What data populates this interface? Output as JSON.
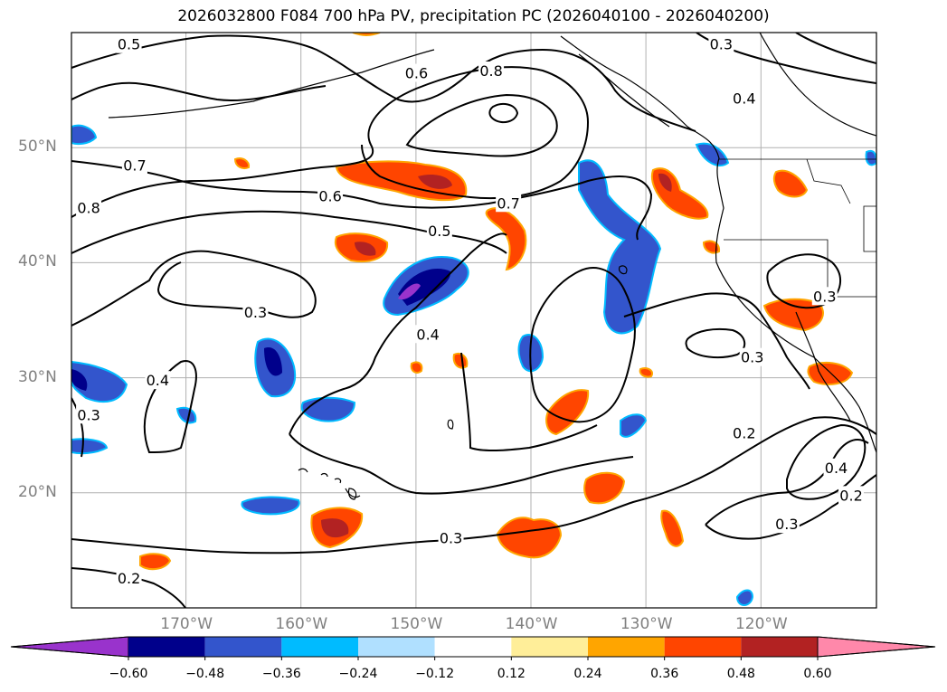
{
  "title": "2026032800 F084 700 hPa PV, precipitation PC (2026040100 - 2026040200)",
  "lat_labels": [
    {
      "text": "50°N",
      "lat": 50
    },
    {
      "text": "40°N",
      "lat": 40
    },
    {
      "text": "30°N",
      "lat": 30
    },
    {
      "text": "20°N",
      "lat": 20
    }
  ],
  "lon_labels": [
    {
      "text": "170°W",
      "lon": -170
    },
    {
      "text": "160°W",
      "lon": -160
    },
    {
      "text": "150°W",
      "lon": -150
    },
    {
      "text": "140°W",
      "lon": -140
    },
    {
      "text": "130°W",
      "lon": -130
    },
    {
      "text": "120°W",
      "lon": -120
    }
  ],
  "map_extent": {
    "lon_min": -180,
    "lon_max": -110,
    "lat_min": 10,
    "lat_max": 60
  },
  "contour_labels": [
    {
      "text": "0.5",
      "lon": -175,
      "lat": 59
    },
    {
      "text": "0.6",
      "lon": -150,
      "lat": 56.5
    },
    {
      "text": "0.8",
      "lon": -143.5,
      "lat": 56.7
    },
    {
      "text": "0.3",
      "lon": -123.5,
      "lat": 59
    },
    {
      "text": "0.4",
      "lon": -121.5,
      "lat": 54.3
    },
    {
      "text": "0.7",
      "lon": -174.5,
      "lat": 48.5
    },
    {
      "text": "0.6",
      "lon": -157.5,
      "lat": 45.8
    },
    {
      "text": "0.7",
      "lon": -142,
      "lat": 45.2
    },
    {
      "text": "0.8",
      "lon": -178.5,
      "lat": 44.8
    },
    {
      "text": "0.5",
      "lon": -148,
      "lat": 42.8
    },
    {
      "text": "0.3",
      "lon": -164,
      "lat": 35.7
    },
    {
      "text": "0.3",
      "lon": -114.5,
      "lat": 37.1
    },
    {
      "text": "0.4",
      "lon": -149,
      "lat": 33.8
    },
    {
      "text": "0.3",
      "lon": -120.8,
      "lat": 31.8
    },
    {
      "text": "0.4",
      "lon": -172.5,
      "lat": 29.8
    },
    {
      "text": "0.3",
      "lon": -178.5,
      "lat": 26.8
    },
    {
      "text": "0.2",
      "lon": -121.5,
      "lat": 25.2
    },
    {
      "text": "0.4",
      "lon": -113.5,
      "lat": 22.2
    },
    {
      "text": "0.2",
      "lon": -112.2,
      "lat": 19.8
    },
    {
      "text": "0.3",
      "lon": -147,
      "lat": 16.1
    },
    {
      "text": "0.3",
      "lon": -117.8,
      "lat": 17.3
    },
    {
      "text": "0.2",
      "lon": -175,
      "lat": 12.6
    }
  ],
  "colorbar": {
    "colors": [
      "#9933cc",
      "#00008b",
      "#3355cc",
      "#00bbff",
      "#b0e0ff",
      "#ffffff",
      "#ffee99",
      "#ffa500",
      "#ff4500",
      "#b22222",
      "#ff88aa"
    ],
    "ticks": [
      "−0.60",
      "−0.48",
      "−0.36",
      "−0.24",
      "−0.12",
      "0.12",
      "0.24",
      "0.36",
      "0.48",
      "0.60"
    ]
  }
}
